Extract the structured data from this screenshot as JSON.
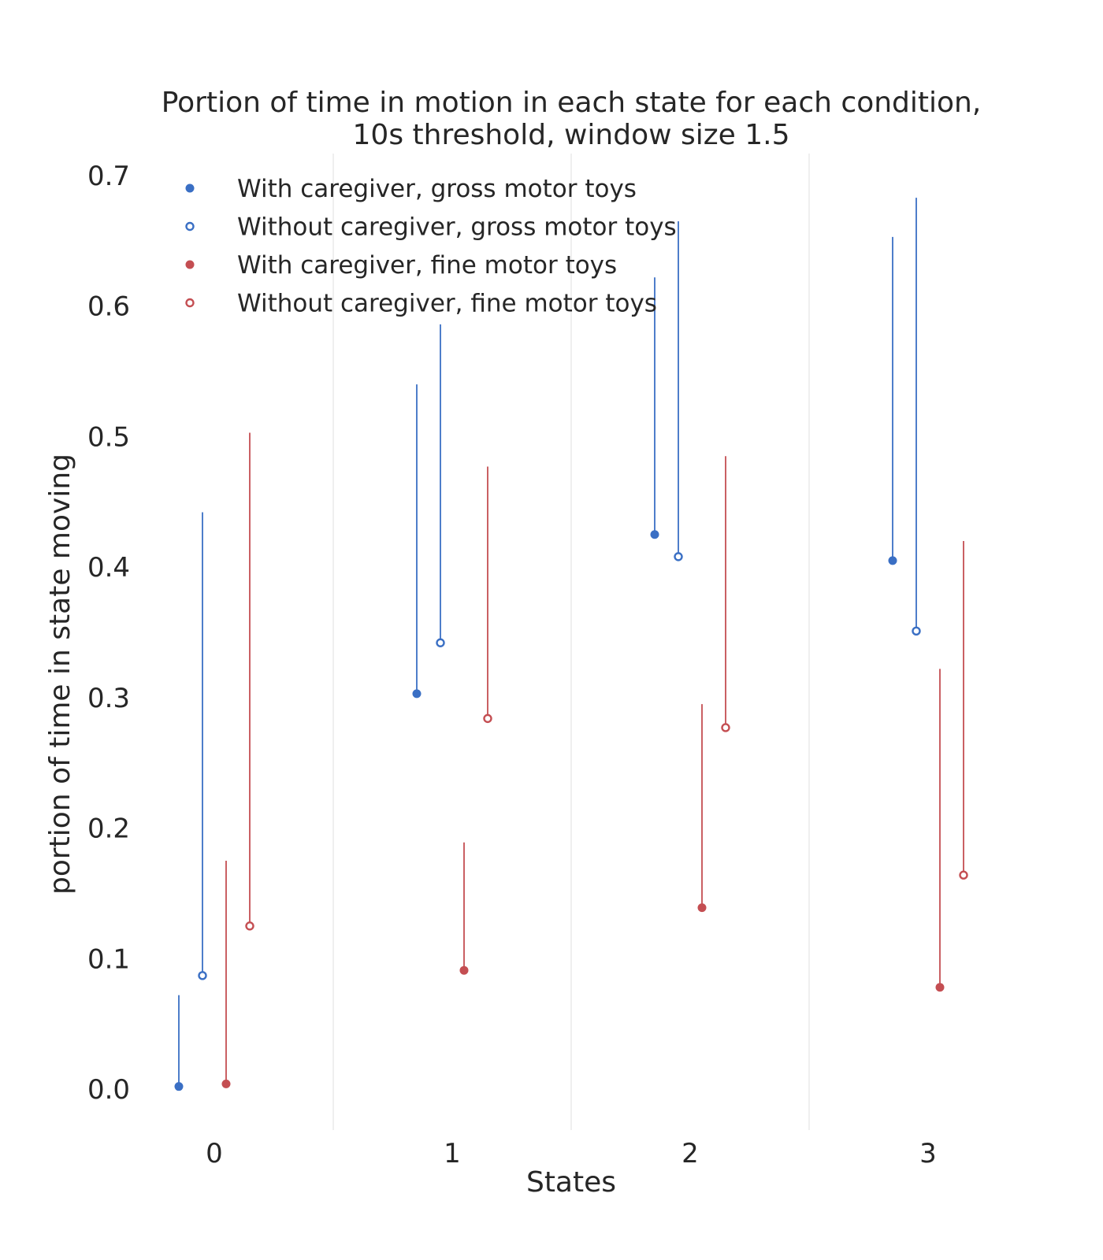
{
  "chart_data": {
    "type": "scatter",
    "title_lines": [
      "Portion of time in motion in each state for each condition,",
      "10s threshold, window size 1.5"
    ],
    "xlabel": "States",
    "ylabel": "portion of time in state moving",
    "categories": [
      "0",
      "1",
      "2",
      "3"
    ],
    "yticks": [
      "0.0",
      "0.1",
      "0.2",
      "0.3",
      "0.4",
      "0.5",
      "0.6",
      "0.7"
    ],
    "ylim": [
      -0.03,
      0.73
    ],
    "grid": "vertical lines between states",
    "legend_position": "top-left",
    "series": [
      {
        "name": "With caregiver, gross motor toys",
        "color": "#3a6fc4",
        "marker": "filled-circle",
        "values": [
          0.002,
          0.303,
          0.425,
          0.405
        ],
        "upper": [
          0.072,
          0.54,
          0.622,
          0.653
        ]
      },
      {
        "name": "Without caregiver, gross motor toys",
        "color": "#3a6fc4",
        "marker": "open-circle",
        "values": [
          0.087,
          0.342,
          0.408,
          0.351
        ],
        "upper": [
          0.442,
          0.586,
          0.665,
          0.683
        ]
      },
      {
        "name": "With caregiver, fine motor toys",
        "color": "#c44e52",
        "marker": "filled-circle",
        "values": [
          0.004,
          0.091,
          0.139,
          0.078
        ],
        "upper": [
          0.175,
          0.189,
          0.295,
          0.322
        ]
      },
      {
        "name": "Without caregiver, fine motor toys",
        "color": "#c44e52",
        "marker": "open-circle",
        "values": [
          0.125,
          0.284,
          0.277,
          0.164
        ],
        "upper": [
          0.503,
          0.477,
          0.485,
          0.42
        ]
      }
    ]
  }
}
